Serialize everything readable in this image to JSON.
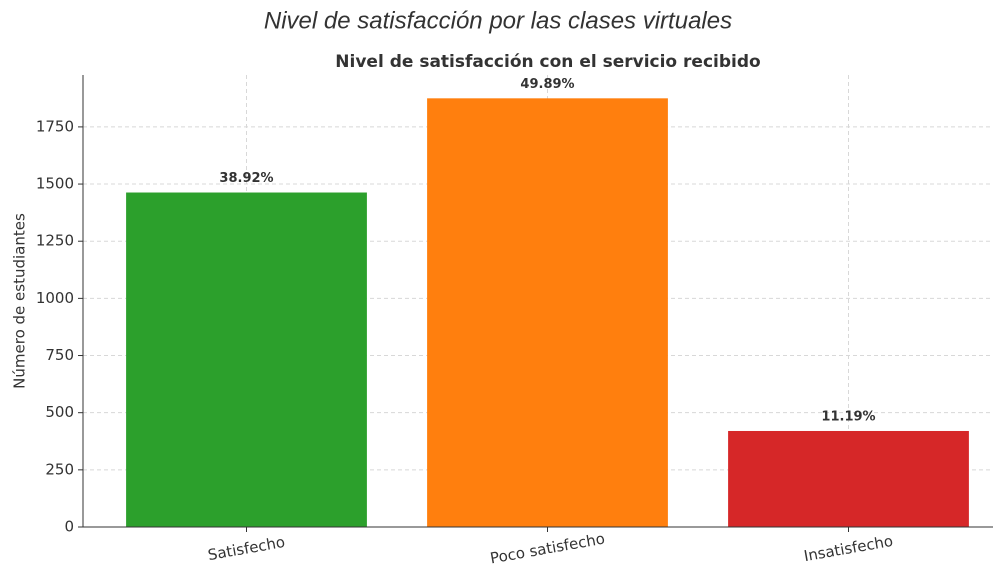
{
  "chart_data": {
    "type": "bar",
    "caption": "Nivel de satisfacción por las clases virtuales",
    "title": "Nivel de satisfacción con el servicio recibido",
    "y_label": "Número de estudiantes",
    "categories": [
      "Satisfecho",
      "Poco satisfecho",
      "Insatisfecho"
    ],
    "values": [
      1463,
      1875,
      420
    ],
    "data_labels": [
      "38.92%",
      "49.89%",
      "11.19%"
    ],
    "colors": [
      "#2ca02c",
      "#ff7f0e",
      "#d62728"
    ],
    "ylim": [
      0,
      1977
    ],
    "yticks": [
      0,
      250,
      500,
      750,
      1000,
      1250,
      1500,
      1750
    ],
    "grid": true
  }
}
